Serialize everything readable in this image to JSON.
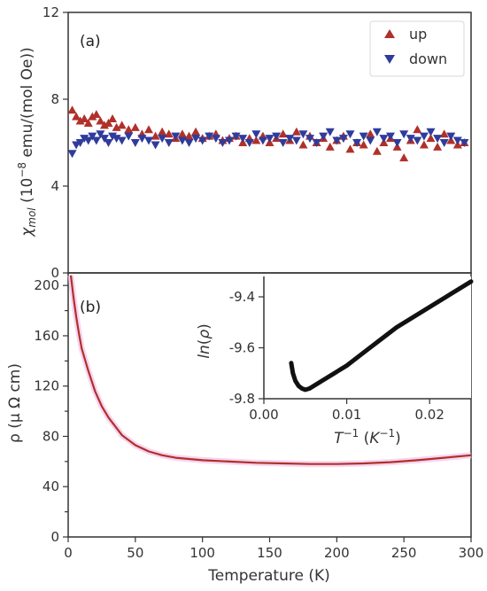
{
  "colors": {
    "up": "#b0302a",
    "down": "#2f3c9c",
    "rho_line": "#b0302a",
    "inset_line": "#111111",
    "axis": "#333333"
  },
  "chart_data": [
    {
      "id": "panel-a",
      "type": "scatter",
      "panel_label": "(a)",
      "ylabel": "χ_mol (10^-8 emu/(mol Oe))",
      "ylim": [
        0,
        12
      ],
      "yticks": [
        0,
        4,
        8,
        12
      ],
      "xlim": [
        0,
        300
      ],
      "grid": false,
      "legend_position": "top-right",
      "series": [
        {
          "name": "up",
          "marker": "triangle-up",
          "color": "#b0302a",
          "x": [
            3,
            6,
            9,
            12,
            15,
            18,
            21,
            24,
            27,
            30,
            33,
            36,
            40,
            45,
            50,
            55,
            60,
            65,
            70,
            75,
            80,
            85,
            90,
            95,
            100,
            105,
            110,
            115,
            120,
            125,
            130,
            135,
            140,
            145,
            150,
            155,
            160,
            165,
            170,
            175,
            180,
            185,
            190,
            195,
            200,
            205,
            210,
            215,
            220,
            225,
            230,
            235,
            240,
            245,
            250,
            255,
            260,
            265,
            270,
            275,
            280,
            285,
            290,
            295
          ],
          "y": [
            7.5,
            7.2,
            7.0,
            7.1,
            6.9,
            7.2,
            7.3,
            7.0,
            6.8,
            6.9,
            7.1,
            6.7,
            6.8,
            6.6,
            6.7,
            6.4,
            6.6,
            6.3,
            6.5,
            6.4,
            6.2,
            6.4,
            6.3,
            6.5,
            6.2,
            6.3,
            6.4,
            6.1,
            6.2,
            6.3,
            6.0,
            6.2,
            6.1,
            6.3,
            6.0,
            6.2,
            6.4,
            6.1,
            6.5,
            5.9,
            6.3,
            6.0,
            6.2,
            5.8,
            6.1,
            6.3,
            5.7,
            6.0,
            5.9,
            6.4,
            5.6,
            6.0,
            6.2,
            5.8,
            5.3,
            6.1,
            6.6,
            5.9,
            6.2,
            5.8,
            6.4,
            6.1,
            5.9,
            6.0
          ]
        },
        {
          "name": "down",
          "marker": "triangle-down",
          "color": "#2f3c9c",
          "x": [
            3,
            6,
            9,
            12,
            15,
            18,
            21,
            24,
            27,
            30,
            33,
            36,
            40,
            45,
            50,
            55,
            60,
            65,
            70,
            75,
            80,
            85,
            90,
            95,
            100,
            105,
            110,
            115,
            120,
            125,
            130,
            135,
            140,
            145,
            150,
            155,
            160,
            165,
            170,
            175,
            180,
            185,
            190,
            195,
            200,
            205,
            210,
            215,
            220,
            225,
            230,
            235,
            240,
            245,
            250,
            255,
            260,
            265,
            270,
            275,
            280,
            285,
            290,
            295
          ],
          "y": [
            5.5,
            5.9,
            6.0,
            6.2,
            6.1,
            6.3,
            6.1,
            6.4,
            6.2,
            6.0,
            6.3,
            6.2,
            6.1,
            6.3,
            6.0,
            6.2,
            6.1,
            5.9,
            6.2,
            6.0,
            6.3,
            6.1,
            6.0,
            6.2,
            6.1,
            6.3,
            6.2,
            6.0,
            6.1,
            6.3,
            6.2,
            6.0,
            6.4,
            6.1,
            6.2,
            6.3,
            6.0,
            6.2,
            6.1,
            6.4,
            6.2,
            6.0,
            6.3,
            6.5,
            6.1,
            6.2,
            6.4,
            6.0,
            6.3,
            6.1,
            6.5,
            6.2,
            6.3,
            6.0,
            6.4,
            6.2,
            6.1,
            6.3,
            6.5,
            6.2,
            6.0,
            6.3,
            6.1,
            6.0
          ]
        }
      ]
    },
    {
      "id": "panel-b",
      "type": "line",
      "panel_label": "(b)",
      "xlabel": "Temperature (K)",
      "ylabel": "ρ (μ Ω cm)",
      "xlim": [
        0,
        300
      ],
      "ylim": [
        0,
        210
      ],
      "xticks": [
        0,
        50,
        100,
        150,
        200,
        250,
        300
      ],
      "yticks": [
        0,
        20,
        40,
        60,
        80,
        100,
        120,
        140,
        160,
        180,
        200
      ],
      "yticklabels": [
        "0",
        "",
        "40",
        "",
        "80",
        "",
        "120",
        "",
        "160",
        "",
        "200"
      ],
      "grid": false,
      "series": [
        {
          "color": "#b0302a",
          "x": [
            2,
            4,
            6,
            8,
            10,
            15,
            20,
            25,
            30,
            40,
            50,
            60,
            70,
            80,
            90,
            100,
            120,
            140,
            160,
            180,
            200,
            220,
            240,
            260,
            280,
            300
          ],
          "y": [
            208,
            190,
            175,
            162,
            150,
            132,
            116,
            104,
            95,
            81,
            73,
            68,
            65,
            63,
            62,
            61,
            60,
            59,
            58.5,
            58,
            58,
            58.5,
            59.5,
            61,
            63,
            65
          ]
        }
      ]
    },
    {
      "id": "panel-b-inset",
      "type": "line",
      "xlabel": "T^-1 (K^-1)",
      "ylabel": "ln(ρ)",
      "xlim": [
        0,
        0.025
      ],
      "ylim": [
        -9.8,
        -9.32
      ],
      "xticks": [
        0.0,
        0.01,
        0.02
      ],
      "xticklabels": [
        "0.00",
        "0.01",
        "0.02"
      ],
      "yticks": [
        -9.8,
        -9.6,
        -9.4
      ],
      "yticklabels": [
        "-9.8",
        "-9.6",
        "-9.4"
      ],
      "series": [
        {
          "color": "#111111",
          "x": [
            0.0033,
            0.0035,
            0.0038,
            0.0042,
            0.0046,
            0.005,
            0.0055,
            0.006,
            0.007,
            0.008,
            0.01,
            0.012,
            0.014,
            0.016,
            0.018,
            0.02,
            0.022,
            0.024,
            0.025
          ],
          "y": [
            -9.66,
            -9.7,
            -9.73,
            -9.75,
            -9.76,
            -9.765,
            -9.76,
            -9.75,
            -9.73,
            -9.71,
            -9.67,
            -9.62,
            -9.57,
            -9.52,
            -9.48,
            -9.44,
            -9.4,
            -9.36,
            -9.34
          ]
        }
      ]
    }
  ]
}
